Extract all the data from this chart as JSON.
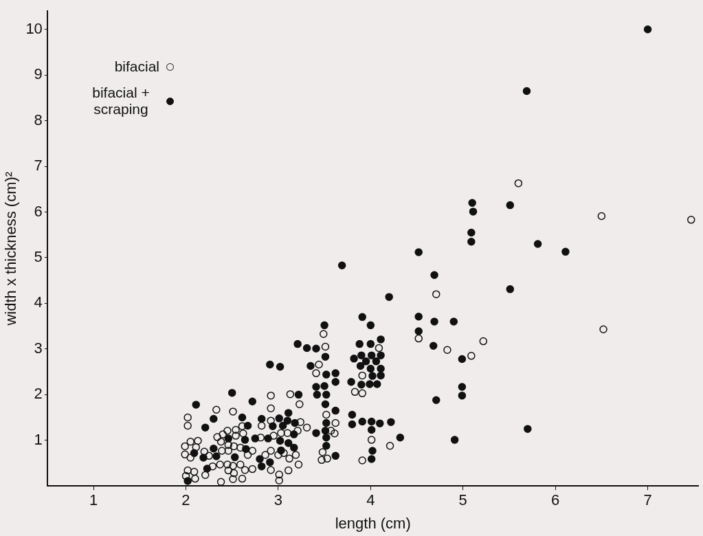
{
  "chart_data": {
    "type": "scatter",
    "xlabel": "length (cm)",
    "ylabel": "width x thickness (cm)²",
    "xlim": [
      0.5,
      7.55
    ],
    "ylim": [
      0,
      10.4
    ],
    "xticks": [
      1,
      2,
      3,
      4,
      5,
      6,
      7
    ],
    "yticks": [
      1,
      2,
      3,
      4,
      5,
      6,
      7,
      8,
      9,
      10
    ],
    "grid": false,
    "legend": "top left",
    "marker": "circle",
    "series": [
      {
        "name": "bifacial",
        "color": "#111111",
        "x": [
          5.6,
          6.5,
          7.47,
          4.71,
          4.52,
          6.52,
          4.83,
          5.22,
          5.09,
          3.49,
          4.09,
          3.51,
          3.44,
          3.41,
          3.91,
          3.83,
          3.91,
          3.52,
          4.01,
          4.21,
          3.62,
          3.57,
          3.61,
          3.31,
          3.48,
          3.47,
          3.53,
          3.91,
          2.92,
          3.13,
          3.23,
          2.92,
          2.33,
          2.51,
          2.02,
          2.92,
          3.24,
          2.02,
          2.61,
          2.82,
          2.45,
          2.54,
          2.4,
          2.34,
          2.54,
          2.62,
          2.81,
          2.95,
          3.03,
          3.1,
          3.21,
          2.05,
          2.13,
          1.99,
          2.11,
          1.99,
          2.05,
          2.2,
          2.25,
          2.38,
          2.46,
          2.39,
          2.46,
          2.52,
          2.59,
          2.67,
          2.72,
          2.86,
          2.92,
          3.0,
          3.19,
          3.12,
          3.06,
          3.22,
          2.29,
          2.02,
          2.09,
          2.37,
          2.45,
          2.51,
          2.46,
          2.52,
          2.59,
          2.64,
          2.72,
          2.92,
          3.01,
          3.01,
          3.11,
          2.1,
          2.0,
          2.21,
          2.38,
          2.51,
          2.61
        ],
        "values": [
          6.63,
          5.91,
          5.83,
          4.2,
          3.23,
          3.43,
          2.98,
          3.17,
          2.85,
          3.33,
          3.02,
          3.05,
          2.66,
          2.47,
          2.42,
          2.06,
          2.03,
          1.56,
          1.01,
          0.88,
          1.38,
          1.21,
          1.15,
          1.28,
          0.74,
          0.57,
          0.6,
          0.56,
          1.98,
          2.01,
          1.79,
          1.7,
          1.67,
          1.63,
          1.5,
          1.43,
          1.4,
          1.32,
          1.31,
          1.32,
          1.21,
          1.23,
          1.13,
          1.07,
          1.1,
          1.15,
          1.06,
          1.1,
          1.16,
          1.16,
          1.21,
          0.97,
          0.99,
          0.87,
          0.85,
          0.69,
          0.62,
          0.75,
          0.66,
          0.97,
          0.9,
          0.77,
          0.77,
          0.87,
          0.84,
          0.68,
          0.77,
          0.68,
          0.77,
          0.68,
          0.68,
          0.6,
          0.72,
          0.47,
          0.43,
          0.34,
          0.31,
          0.47,
          0.47,
          0.44,
          0.34,
          0.28,
          0.47,
          0.35,
          0.37,
          0.35,
          0.25,
          0.12,
          0.34,
          0.16,
          0.22,
          0.24,
          0.09,
          0.15,
          0.16
        ]
      },
      {
        "name": "bifacial + scraping",
        "color": "#111111",
        "x": [
          7.0,
          5.69,
          5.1,
          5.11,
          5.51,
          5.09,
          5.09,
          5.81,
          6.11,
          4.52,
          4.69,
          5.51,
          4.52,
          4.69,
          4.9,
          4.52,
          4.68,
          4.99,
          4.99,
          4.99,
          4.71,
          5.7,
          4.91,
          3.69,
          4.2,
          3.91,
          4.0,
          3.5,
          4.11,
          3.88,
          4.0,
          3.31,
          3.41,
          3.51,
          3.9,
          4.01,
          4.11,
          3.82,
          3.95,
          4.06,
          3.89,
          3.35,
          4.0,
          4.11,
          4.02,
          4.11,
          3.52,
          3.62,
          3.62,
          3.79,
          3.9,
          3.99,
          4.07,
          3.41,
          3.5,
          3.42,
          3.52,
          3.51,
          3.62,
          3.8,
          3.8,
          3.91,
          4.01,
          4.1,
          4.22,
          4.01,
          4.32,
          3.52,
          3.51,
          3.41,
          3.52,
          3.52,
          3.62,
          4.02,
          4.01,
          3.21,
          2.91,
          3.02,
          2.5,
          2.11,
          2.72,
          3.22,
          3.11,
          2.3,
          2.61,
          2.82,
          3.01,
          3.1,
          3.18,
          2.21,
          2.67,
          2.94,
          3.05,
          2.46,
          2.64,
          2.75,
          2.89,
          3.17,
          3.02,
          3.11,
          2.09,
          2.19,
          2.3,
          2.33,
          2.53,
          2.65,
          2.8,
          2.91,
          3.03,
          3.17,
          2.23,
          2.82,
          2.02
        ],
        "values": [
          10.0,
          8.65,
          6.2,
          6.01,
          6.15,
          5.55,
          5.35,
          5.3,
          5.13,
          5.12,
          4.62,
          4.31,
          3.71,
          3.6,
          3.6,
          3.39,
          3.07,
          2.78,
          2.17,
          1.98,
          1.88,
          1.25,
          1.01,
          4.83,
          4.14,
          3.7,
          3.52,
          3.52,
          3.21,
          3.11,
          3.11,
          3.02,
          3.01,
          2.83,
          2.86,
          2.86,
          2.86,
          2.79,
          2.73,
          2.73,
          2.63,
          2.63,
          2.57,
          2.57,
          2.41,
          2.42,
          2.44,
          2.47,
          2.28,
          2.28,
          2.22,
          2.23,
          2.23,
          2.17,
          2.19,
          2.0,
          2.0,
          1.79,
          1.65,
          1.56,
          1.35,
          1.41,
          1.41,
          1.37,
          1.4,
          1.23,
          1.06,
          1.38,
          1.21,
          1.16,
          1.06,
          0.88,
          0.66,
          0.77,
          0.59,
          3.11,
          2.66,
          2.61,
          2.04,
          1.78,
          1.85,
          2.0,
          1.6,
          1.47,
          1.5,
          1.47,
          1.48,
          1.43,
          1.38,
          1.28,
          1.32,
          1.31,
          1.32,
          1.04,
          1.01,
          1.04,
          1.04,
          1.13,
          0.99,
          0.94,
          0.72,
          0.62,
          0.82,
          0.65,
          0.63,
          0.81,
          0.59,
          0.52,
          0.78,
          0.84,
          0.38,
          0.43,
          0.11
        ]
      }
    ]
  }
}
